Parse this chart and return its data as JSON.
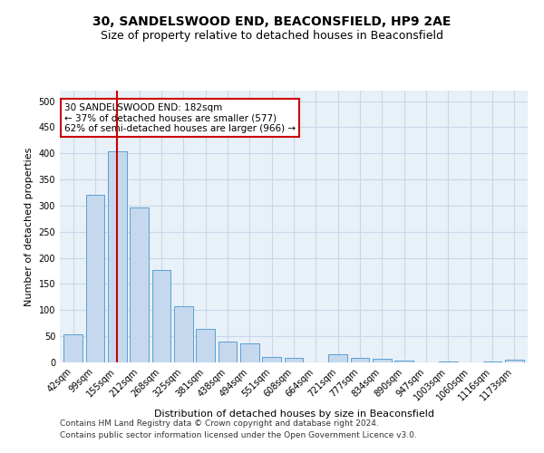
{
  "title": "30, SANDELSWOOD END, BEACONSFIELD, HP9 2AE",
  "subtitle": "Size of property relative to detached houses in Beaconsfield",
  "xlabel": "Distribution of detached houses by size in Beaconsfield",
  "ylabel": "Number of detached properties",
  "categories": [
    "42sqm",
    "99sqm",
    "155sqm",
    "212sqm",
    "268sqm",
    "325sqm",
    "381sqm",
    "438sqm",
    "494sqm",
    "551sqm",
    "608sqm",
    "664sqm",
    "721sqm",
    "777sqm",
    "834sqm",
    "890sqm",
    "947sqm",
    "1003sqm",
    "1060sqm",
    "1116sqm",
    "1173sqm"
  ],
  "values": [
    53,
    320,
    403,
    297,
    177,
    107,
    64,
    40,
    36,
    11,
    9,
    0,
    15,
    9,
    7,
    4,
    0,
    1,
    0,
    1,
    6
  ],
  "bar_color": "#c5d8ed",
  "bar_edge_color": "#5a9fd4",
  "vline_x": 2,
  "vline_color": "#cc0000",
  "annotation_text": "30 SANDELSWOOD END: 182sqm\n← 37% of detached houses are smaller (577)\n62% of semi-detached houses are larger (966) →",
  "annotation_box_color": "#ffffff",
  "annotation_box_edge_color": "#cc0000",
  "ylim": [
    0,
    520
  ],
  "yticks": [
    0,
    50,
    100,
    150,
    200,
    250,
    300,
    350,
    400,
    450,
    500
  ],
  "footer_line1": "Contains HM Land Registry data © Crown copyright and database right 2024.",
  "footer_line2": "Contains public sector information licensed under the Open Government Licence v3.0.",
  "background_color": "#ffffff",
  "axes_background": "#e8f0f8",
  "grid_color": "#c8d8e8",
  "title_fontsize": 10,
  "subtitle_fontsize": 9,
  "axis_label_fontsize": 8,
  "tick_fontsize": 7,
  "annotation_fontsize": 7.5,
  "footer_fontsize": 6.5
}
